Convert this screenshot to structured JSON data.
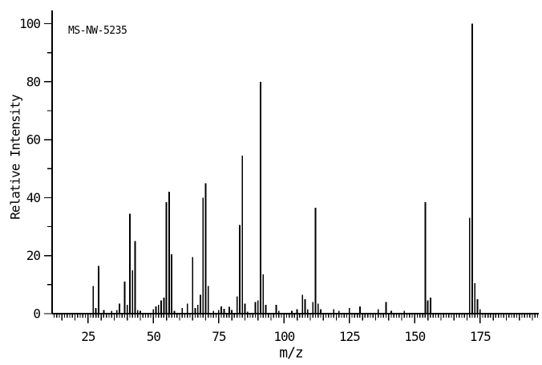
{
  "annotation": "MS-NW-5235",
  "x_axis": {
    "label": "m/z",
    "tick_labels": [
      25,
      50,
      75,
      100,
      125,
      150,
      175
    ]
  },
  "y_axis": {
    "label": "Relative Intensity",
    "tick_labels": [
      0,
      20,
      40,
      60,
      80,
      100
    ]
  },
  "colors": {
    "ink": "#000000",
    "paper": "#ffffff"
  },
  "chart_data": {
    "type": "bar",
    "subtype": "mass-spectrum-stick-plot",
    "title": "MS-NW-5235",
    "xlabel": "m/z",
    "ylabel": "Relative Intensity",
    "xlim": [
      11,
      197
    ],
    "ylim": [
      0,
      100
    ],
    "grid": false,
    "legend": "none",
    "x_major_ticks": [
      25,
      50,
      75,
      100,
      125,
      150,
      175
    ],
    "x_medium_tick_step": 5,
    "x_minor_tick_step": 1,
    "y_major_tick_step": 20,
    "y_minor_tick_step": 10,
    "base_peak_mz": 172,
    "peaks": [
      [
        27,
        9.5
      ],
      [
        28,
        2
      ],
      [
        29,
        16.5
      ],
      [
        31,
        1.2
      ],
      [
        34,
        1
      ],
      [
        36,
        1.2
      ],
      [
        37,
        3.5
      ],
      [
        39,
        11
      ],
      [
        40,
        3
      ],
      [
        41,
        34.5
      ],
      [
        42,
        15
      ],
      [
        43,
        25
      ],
      [
        44,
        1.2
      ],
      [
        45,
        1
      ],
      [
        50,
        1.5
      ],
      [
        51,
        2.5
      ],
      [
        52,
        3
      ],
      [
        53,
        4.5
      ],
      [
        54,
        5.5
      ],
      [
        55,
        38.5
      ],
      [
        56,
        42
      ],
      [
        57,
        20.5
      ],
      [
        58,
        1
      ],
      [
        61,
        2
      ],
      [
        63,
        3.5
      ],
      [
        65,
        19.5
      ],
      [
        66,
        2
      ],
      [
        67,
        3
      ],
      [
        68,
        6.5
      ],
      [
        69,
        40
      ],
      [
        70,
        45
      ],
      [
        71,
        9.5
      ],
      [
        73,
        1
      ],
      [
        75,
        1.2
      ],
      [
        76,
        2.5
      ],
      [
        77,
        1.7
      ],
      [
        79,
        2.3
      ],
      [
        80,
        1.2
      ],
      [
        82,
        6
      ],
      [
        83,
        30.5
      ],
      [
        84,
        54.5
      ],
      [
        85,
        3.5
      ],
      [
        86,
        0.7
      ],
      [
        89,
        4
      ],
      [
        90,
        4.5
      ],
      [
        91,
        80
      ],
      [
        92,
        13.5
      ],
      [
        93,
        3
      ],
      [
        97,
        3
      ],
      [
        98,
        1
      ],
      [
        103,
        1
      ],
      [
        105,
        1.5
      ],
      [
        107,
        6.5
      ],
      [
        108,
        5
      ],
      [
        109,
        1.5
      ],
      [
        111,
        4
      ],
      [
        112,
        36.5
      ],
      [
        113,
        3.5
      ],
      [
        114,
        1.5
      ],
      [
        119,
        1.5
      ],
      [
        121,
        1
      ],
      [
        125,
        2
      ],
      [
        129,
        2.5
      ],
      [
        136,
        1.5
      ],
      [
        139,
        4
      ],
      [
        141,
        1
      ],
      [
        146,
        1
      ],
      [
        154,
        38.5
      ],
      [
        155,
        4.5
      ],
      [
        156,
        5.5
      ],
      [
        171,
        33
      ],
      [
        172,
        100
      ],
      [
        173,
        10.5
      ],
      [
        174,
        5
      ],
      [
        175,
        1.5
      ]
    ]
  }
}
